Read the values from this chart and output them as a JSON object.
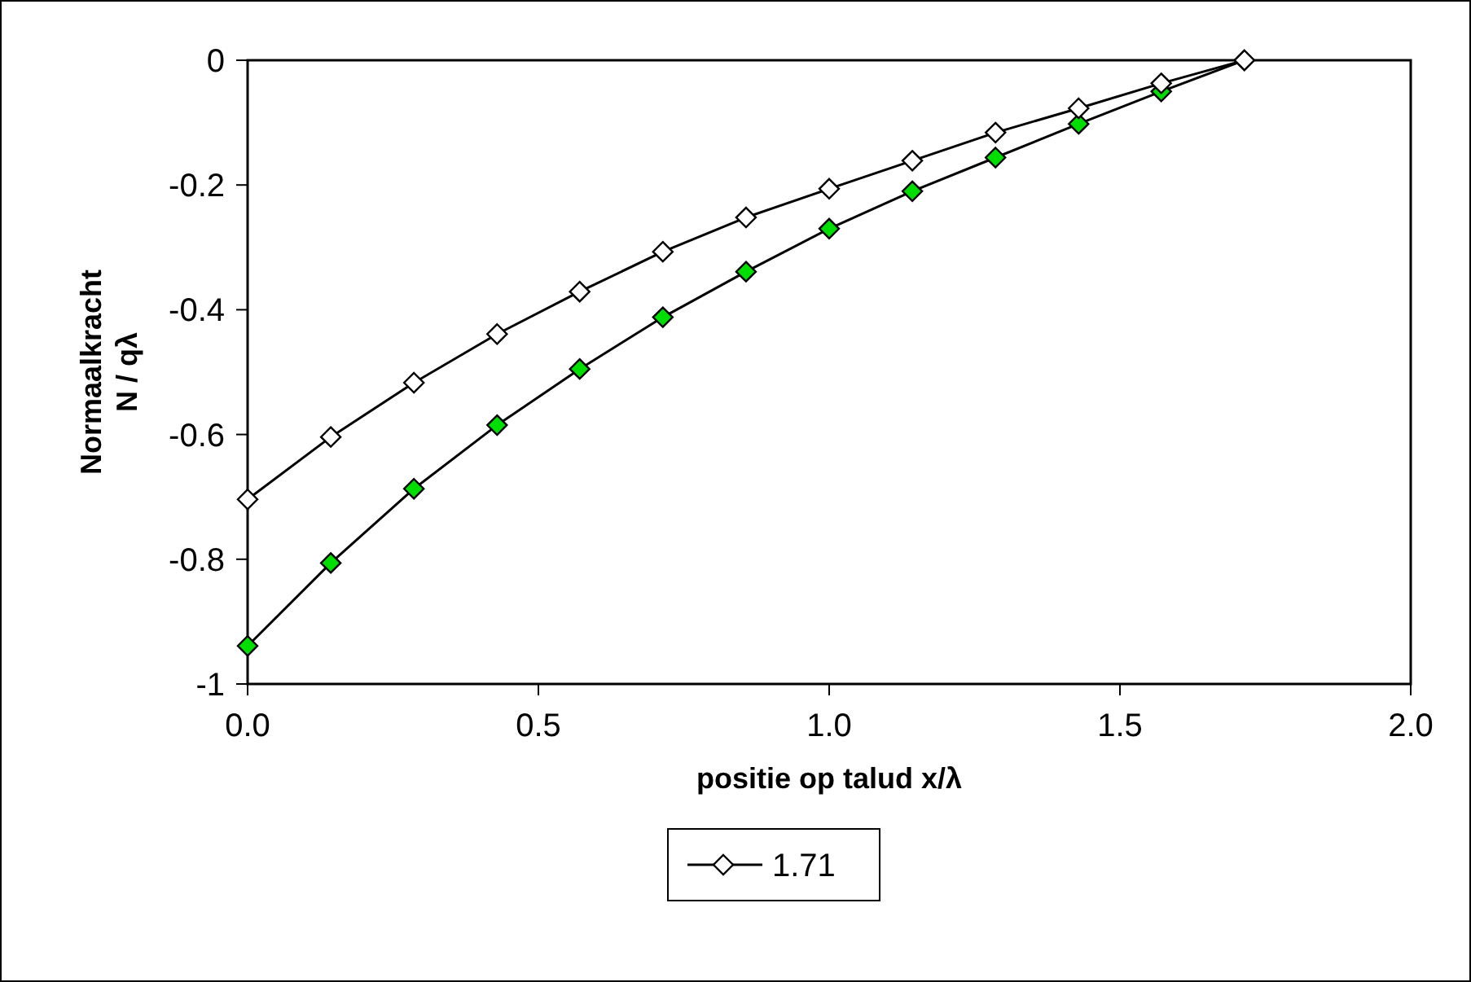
{
  "chart_data": {
    "type": "line",
    "xlabel": "positie op talud x/λ",
    "ylabel": "Normaalkracht\nN / qλ",
    "x": [
      0,
      0.143,
      0.286,
      0.429,
      0.571,
      0.714,
      0.857,
      1.0,
      1.143,
      1.286,
      1.429,
      1.571,
      1.714
    ],
    "series": [
      {
        "color": "#00dd00",
        "values": [
          -0.939,
          -0.806,
          -0.687,
          -0.585,
          -0.495,
          -0.412,
          -0.339,
          -0.27,
          -0.21,
          -0.156,
          -0.102,
          -0.05,
          0
        ]
      },
      {
        "name": "1.71",
        "color": "#ffffff",
        "values": [
          -0.704,
          -0.604,
          -0.517,
          -0.439,
          -0.371,
          -0.307,
          -0.252,
          -0.206,
          -0.161,
          -0.116,
          -0.077,
          -0.037,
          0
        ]
      }
    ],
    "xlim": [
      0,
      2
    ],
    "xticks": [
      {
        "value": 0,
        "label": "0.0"
      },
      {
        "value": 0.5,
        "label": "0.5"
      },
      {
        "value": 1,
        "label": "1.0"
      },
      {
        "value": 1.5,
        "label": "1.5"
      },
      {
        "value": 2,
        "label": "2.0"
      }
    ],
    "ylim": [
      -1,
      0
    ],
    "yticks": [
      {
        "value": 0,
        "label": "0"
      },
      -0.2,
      -0.4,
      -0.6,
      -0.8,
      {
        "value": -1,
        "label": "-1"
      }
    ],
    "grid": false,
    "legend": "bottom",
    "marker": "diamond",
    "line_style": "solid"
  }
}
